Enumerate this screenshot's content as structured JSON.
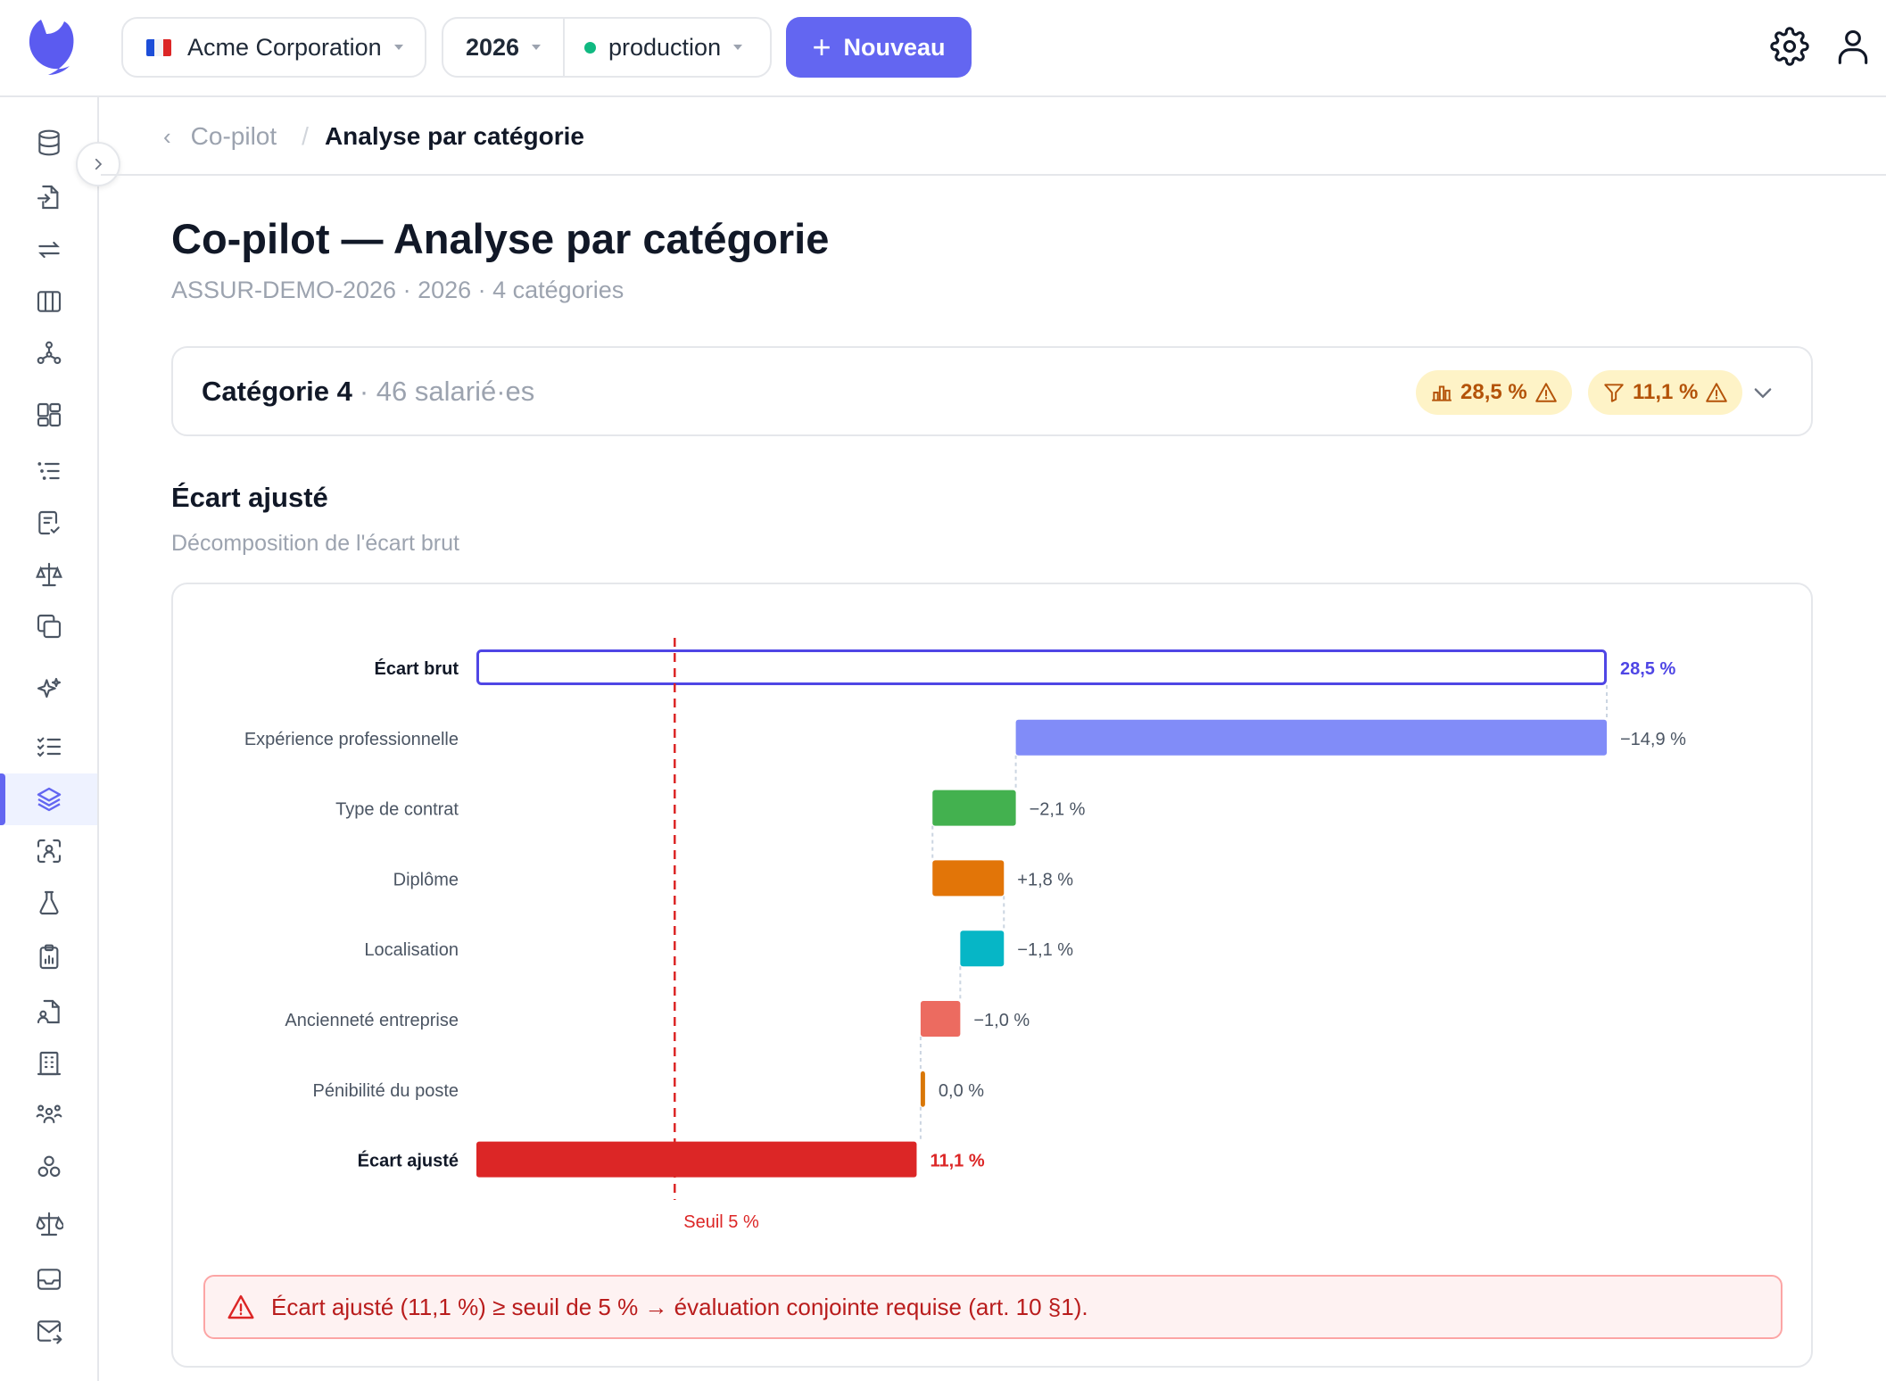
{
  "topbar": {
    "org_name": "Acme Corporation",
    "year": "2026",
    "environment": "production",
    "new_button_label": "Nouveau"
  },
  "breadcrumb": {
    "parent": "Co-pilot",
    "current": "Analyse par catégorie"
  },
  "page": {
    "title": "Co-pilot — Analyse par catégorie",
    "subtitle": "ASSUR-DEMO-2026 · 2026 · 4 catégories"
  },
  "category": {
    "name": "Catégorie 4",
    "count": "· 46 salarié·es",
    "badge_raw": "28,5 %",
    "badge_adjusted": "11,1 %"
  },
  "section": {
    "title": "Écart ajusté",
    "subtitle": "Décomposition de l'écart brut"
  },
  "chart_data": {
    "type": "bar",
    "subtype": "waterfall",
    "categories": [
      "Écart brut",
      "Expérience professionnelle",
      "Type de contrat",
      "Diplôme",
      "Localisation",
      "Ancienneté entreprise",
      "Pénibilité du poste",
      "Écart ajusté"
    ],
    "values": [
      28.5,
      -14.9,
      -2.1,
      1.8,
      -1.1,
      -1.0,
      0.0,
      11.1
    ],
    "value_labels": [
      "28,5 %",
      "−14,9 %",
      "−2,1 %",
      "+1,8 %",
      "−1,1 %",
      "−1,0 %",
      "0,0 %",
      "11,1 %"
    ],
    "xlim": [
      0,
      28.5
    ],
    "threshold": 5,
    "threshold_label": "Seuil 5 %",
    "colors": [
      "#4f46e5",
      "#818cf8",
      "#43b14f",
      "#e27508",
      "#06b6c6",
      "#ec6b60",
      "#d97706",
      "#dc2626"
    ]
  },
  "alert": {
    "text": "Écart ajusté (11,1 %) ≥ seuil de 5 % → évaluation conjointe requise (art. 10 §1)."
  },
  "colors": {
    "accent": "#6366f1",
    "danger": "#dc2626",
    "warning_bg": "#fef3c7",
    "warning_text": "#b45309"
  }
}
